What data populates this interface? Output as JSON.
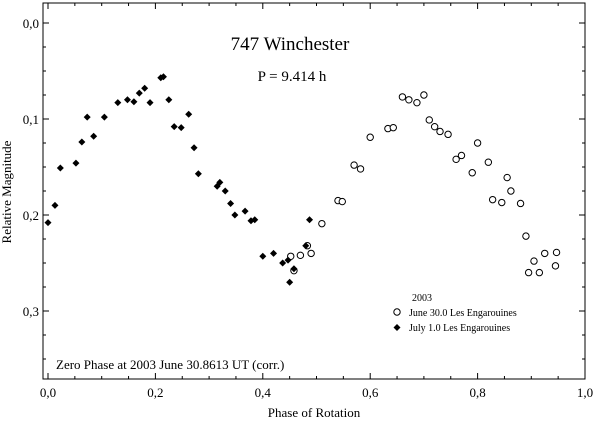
{
  "chart_data": {
    "type": "scatter",
    "title": "747 Winchester",
    "subtitle": "P = 9.414 h",
    "xlabel": "Phase of Rotation",
    "ylabel": "Relative Magnitude",
    "xlim": [
      0.0,
      1.0
    ],
    "ylim": [
      0.0,
      0.37
    ],
    "y_inverted": true,
    "x_ticks": [
      "0,0",
      "0,2",
      "0,4",
      "0,6",
      "0,8",
      "1,0"
    ],
    "y_ticks": [
      "0,0",
      "0,1",
      "0,2",
      "0,3"
    ],
    "legend_title": "2003",
    "legend_position": "bottom-right",
    "annotation": "Zero Phase at 2003 June 30.8613 UT (corr.)",
    "series": [
      {
        "name": "June 30.0 Les Engarouines",
        "marker": "open-circle",
        "x": [
          0.452,
          0.458,
          0.47,
          0.483,
          0.49,
          0.51,
          0.54,
          0.548,
          0.57,
          0.582,
          0.6,
          0.633,
          0.643,
          0.66,
          0.672,
          0.687,
          0.7,
          0.71,
          0.72,
          0.73,
          0.745,
          0.76,
          0.77,
          0.79,
          0.8,
          0.82,
          0.828,
          0.845,
          0.855,
          0.862,
          0.88,
          0.89,
          0.895,
          0.905,
          0.915,
          0.925,
          0.945,
          0.947
        ],
        "y": [
          0.243,
          0.258,
          0.242,
          0.232,
          0.24,
          0.209,
          0.185,
          0.186,
          0.148,
          0.152,
          0.119,
          0.11,
          0.109,
          0.077,
          0.08,
          0.083,
          0.075,
          0.101,
          0.108,
          0.113,
          0.116,
          0.142,
          0.138,
          0.156,
          0.125,
          0.145,
          0.184,
          0.187,
          0.161,
          0.175,
          0.188,
          0.222,
          0.26,
          0.248,
          0.26,
          0.24,
          0.253,
          0.239
        ]
      },
      {
        "name": "July 1.0 Les Engarouines",
        "marker": "filled-diamond",
        "x": [
          0.0,
          0.013,
          0.023,
          0.052,
          0.063,
          0.073,
          0.085,
          0.105,
          0.13,
          0.148,
          0.16,
          0.17,
          0.18,
          0.19,
          0.21,
          0.215,
          0.225,
          0.235,
          0.248,
          0.262,
          0.272,
          0.28,
          0.315,
          0.32,
          0.33,
          0.34,
          0.348,
          0.367,
          0.378,
          0.385,
          0.4,
          0.42,
          0.437,
          0.447,
          0.45,
          0.458,
          0.48,
          0.487
        ],
        "y": [
          0.208,
          0.19,
          0.151,
          0.146,
          0.124,
          0.098,
          0.118,
          0.098,
          0.083,
          0.08,
          0.082,
          0.073,
          0.068,
          0.083,
          0.057,
          0.056,
          0.08,
          0.108,
          0.109,
          0.095,
          0.13,
          0.157,
          0.17,
          0.166,
          0.175,
          0.188,
          0.2,
          0.196,
          0.206,
          0.205,
          0.243,
          0.24,
          0.25,
          0.247,
          0.27,
          0.256,
          0.232,
          0.205
        ]
      }
    ]
  }
}
